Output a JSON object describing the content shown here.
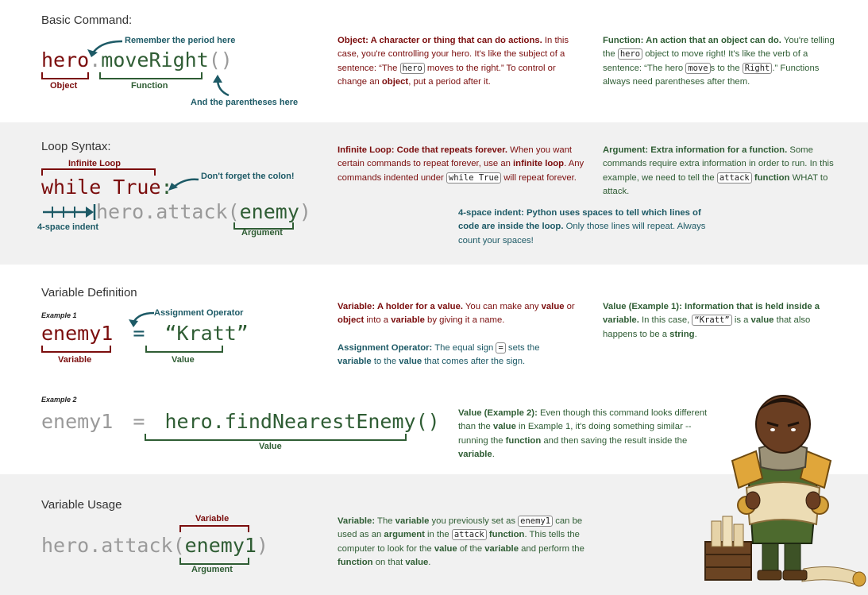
{
  "sections": {
    "basic": {
      "heading": "Basic Command:",
      "code": {
        "object": "hero",
        "dot": ".",
        "function": "moveRight",
        "parens": "()"
      },
      "labels": {
        "object": "Object",
        "function": "Function",
        "period_note": "Remember the period here",
        "paren_note": "And the parentheses here"
      },
      "object_desc": {
        "title": "Object: A character or thing that can do actions.",
        "t1": " In this case, you're controlling your hero. It's like the subject of a sentence: “The ",
        "c1": "hero",
        "t2": " moves to the right.” To control or change an ",
        "b1": "object",
        "t3": ", put a period after it."
      },
      "function_desc": {
        "title": "Function: An action that an object can do.",
        "t1": " You're telling the ",
        "c1": "hero",
        "t2": " object to move right! It's like the verb of a sentence: “The hero ",
        "c2": "move",
        "t3": "s to the ",
        "c3": "Right",
        "t4": ".” Functions always need parentheses after them."
      }
    },
    "loop": {
      "heading": "Loop Syntax:",
      "code": {
        "while": "while True",
        "colon": ":",
        "call": "hero.attack(",
        "arg": "enemy",
        "close": ")"
      },
      "labels": {
        "infinite_loop": "Infinite Loop",
        "colon_note": "Don't forget the colon!",
        "indent": "4-space indent",
        "argument": "Argument"
      },
      "loop_desc": {
        "title": "Infinite Loop: Code that repeats forever.",
        "t1": " When you want certain commands to repeat forever, use an ",
        "b1": "infinite loop",
        "t2": ". Any commands indented under ",
        "c1": "while True",
        "t3": " will repeat forever."
      },
      "arg_desc": {
        "title": "Argument: Extra information for a function.",
        "t1": " Some commands require extra information in order to run. In this example, we need to tell the ",
        "c1": "attack",
        "b1": " function",
        "t2": " WHAT to attack."
      },
      "indent_desc": {
        "title": "4-space indent:  Python uses spaces to tell which lines of code are inside the loop.",
        "t1": " Only those lines will repeat. Always count your spaces!"
      }
    },
    "variable_def": {
      "heading": "Variable Definition",
      "example1": "Example 1",
      "example2": "Example 2",
      "code1": {
        "name": "enemy1",
        "eq": "=",
        "value": "“Kratt”"
      },
      "code2": {
        "name": "enemy1",
        "eq": "=",
        "value": "hero.findNearestEnemy()"
      },
      "labels": {
        "variable": "Variable",
        "value": "Value",
        "assign_op": "Assignment Operator",
        "value2": "Value"
      },
      "var_desc": {
        "title": "Variable: A holder for a value.",
        "t1": " You can make any ",
        "b1": "value",
        "t2": " or ",
        "b2": "object",
        "t3": " into a ",
        "b3": "variable",
        "t4": " by giving it a name."
      },
      "assign_desc": {
        "title": "Assignment Operator:",
        "t1": "  The equal sign ",
        "c1": "=",
        "t2": " sets the ",
        "b1": "variable",
        "t3": " to the ",
        "b2": "value",
        "t4": " that comes after the sign."
      },
      "val1_desc": {
        "title": "Value (Example 1): Information that is held inside a variable.",
        "t1": " In this case, ",
        "c1": "“Kratt”",
        "t2": " is a ",
        "b1": "value",
        "t3": " that also happens to be a ",
        "b2": "string",
        "t4": "."
      },
      "val2_desc": {
        "title": "Value (Example 2):",
        "t1": " Even though this command looks different than the ",
        "b1": "value",
        "t2": " in Example 1, it's doing something similar -- running the ",
        "b2": "function",
        "t3": " and then saving the result inside the ",
        "b3": "variable",
        "t4": "."
      }
    },
    "variable_usage": {
      "heading": "Variable Usage",
      "code": {
        "call": "hero.attack(",
        "arg": "enemy1",
        "close": ")"
      },
      "labels": {
        "variable": "Variable",
        "argument": "Argument"
      },
      "usage_desc": {
        "title": "Variable:",
        "t1": " The ",
        "b1": "variable",
        "t2": " you previously set as ",
        "c1": "enemy1",
        "t3": " can be used as an ",
        "b2": "argument",
        "t4": " in the ",
        "c2": "attack",
        "b3": " function",
        "t5": ". This tells the computer to look for the ",
        "b4": "value",
        "t6": " of the ",
        "b5": "variable",
        "t7": " and perform the ",
        "b6": "function",
        "t8": " on that ",
        "b7": "value",
        "t9": "."
      }
    }
  },
  "colors": {
    "dark_red": "#7b0d0d",
    "green": "#2f5d34",
    "teal": "#1d5a66",
    "gray_code": "#9a9a9a",
    "band": "#f1f1f1"
  },
  "illustration": "hero-character-holding-scroll"
}
